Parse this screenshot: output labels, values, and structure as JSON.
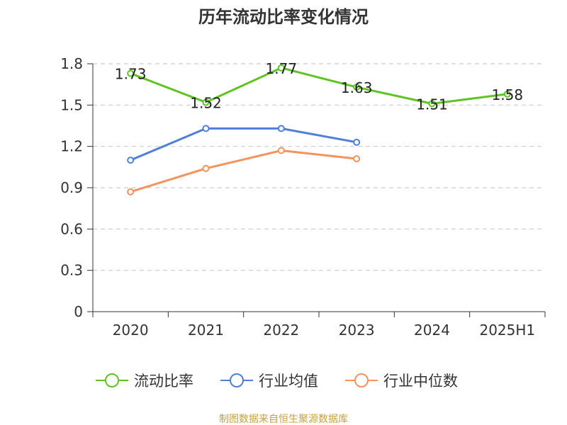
{
  "chart_data": {
    "type": "line",
    "title": "历年流动比率变化情况",
    "xlabel": "",
    "ylabel": "",
    "categories": [
      "2020",
      "2021",
      "2022",
      "2023",
      "2024",
      "2025H1"
    ],
    "ylim": [
      0,
      1.8
    ],
    "yticks": [
      "0",
      "0.3",
      "0.6",
      "0.9",
      "1.2",
      "1.5",
      "1.8"
    ],
    "grid": true,
    "legend_position": "bottom",
    "series": [
      {
        "name": "流动比率",
        "color": "#5ec424",
        "values": [
          1.73,
          1.52,
          1.77,
          1.63,
          1.51,
          1.58
        ],
        "labels": [
          "1.73",
          "1.52",
          "1.77",
          "1.63",
          "1.51",
          "1.58"
        ]
      },
      {
        "name": "行业均值",
        "color": "#4f7fd9",
        "values": [
          1.1,
          1.33,
          1.33,
          1.23,
          null,
          null
        ]
      },
      {
        "name": "行业中位数",
        "color": "#f5935e",
        "values": [
          0.87,
          1.04,
          1.17,
          1.11,
          null,
          null
        ]
      }
    ],
    "source": "制图数据来自恒生聚源数据库"
  }
}
